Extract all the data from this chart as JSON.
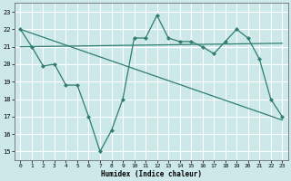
{
  "xlabel": "Humidex (Indice chaleur)",
  "background_color": "#cce8e8",
  "grid_color": "#ffffff",
  "line_color": "#2e7d6e",
  "xlim": [
    -0.5,
    23.5
  ],
  "ylim": [
    14.5,
    23.5
  ],
  "yticks": [
    15,
    16,
    17,
    18,
    19,
    20,
    21,
    22,
    23
  ],
  "xticks": [
    0,
    1,
    2,
    3,
    4,
    5,
    6,
    7,
    8,
    9,
    10,
    11,
    12,
    13,
    14,
    15,
    16,
    17,
    18,
    19,
    20,
    21,
    22,
    23
  ],
  "main_x": [
    0,
    1,
    2,
    3,
    4,
    5,
    6,
    7,
    8,
    9,
    10,
    11,
    12,
    13,
    14,
    15,
    16,
    17,
    18,
    19,
    20,
    21,
    22,
    23
  ],
  "main_y": [
    22.0,
    21.0,
    19.9,
    20.0,
    18.8,
    18.8,
    17.0,
    15.0,
    16.2,
    18.0,
    21.5,
    21.5,
    22.8,
    21.5,
    21.3,
    21.3,
    21.0,
    20.6,
    21.3,
    22.0,
    21.5,
    20.3,
    18.0,
    17.0
  ],
  "trend1_x": [
    0,
    23
  ],
  "trend1_y": [
    21.0,
    21.2
  ],
  "trend2_x": [
    0,
    23
  ],
  "trend2_y": [
    22.0,
    16.8
  ]
}
